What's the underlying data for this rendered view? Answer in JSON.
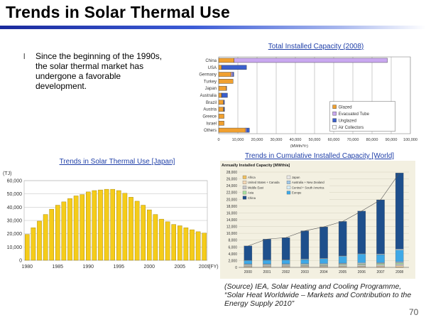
{
  "slide": {
    "title": "Trends in Solar Thermal Use",
    "bullet_glyph": "l",
    "bullet": "Since the beginning of the 1990s, the solar thermal market has undergone a favorable development.",
    "source": "(Source) IEA, Solar Heating and Cooling Programme, “Solar Heat Worldwide – Markets and Contribution to the Energy Supply 2010”",
    "page_number": "70"
  },
  "chart_data": [
    {
      "type": "bar",
      "orientation": "horizontal",
      "stacked": true,
      "title": "Total Installed Capacity (2008)",
      "xlabel": "(MWth/Yr)",
      "xlim": [
        0,
        100000
      ],
      "xticks": [
        "0",
        "10,000",
        "20,000",
        "30,000",
        "40,000",
        "50,000",
        "60,000",
        "70,000",
        "80,000",
        "90,000",
        "100,000"
      ],
      "categories": [
        "China",
        "USA",
        "Germany",
        "Turkey",
        "Japan",
        "Australia",
        "Brazil",
        "Austria",
        "Greece",
        "Israel",
        "Others"
      ],
      "series": [
        {
          "name": "Glazed",
          "color": "#f0a030",
          "values": [
            8000,
            1500,
            6500,
            7500,
            4000,
            1500,
            2500,
            2500,
            2800,
            2800,
            14000
          ]
        },
        {
          "name": "Evacuated Tube",
          "color": "#c9a8f0",
          "values": [
            80000,
            0,
            800,
            0,
            200,
            100,
            0,
            150,
            0,
            0,
            500
          ]
        },
        {
          "name": "Unglazed",
          "color": "#3a5fcd",
          "values": [
            0,
            13000,
            600,
            0,
            0,
            3000,
            500,
            400,
            0,
            0,
            1500
          ]
        },
        {
          "name": "Air Collectors",
          "color": "#ffffff",
          "values": [
            0,
            0,
            0,
            0,
            0,
            0,
            0,
            0,
            0,
            0,
            0
          ]
        }
      ],
      "legend_position": "bottom-right"
    },
    {
      "type": "bar",
      "title": "Trends in Solar Thermal Use [Japan]",
      "ylabel": "(TJ)",
      "xlabel": "(FY)",
      "ylim": [
        0,
        60000
      ],
      "yticks": [
        "0",
        "10,000",
        "20,000",
        "30,000",
        "40,000",
        "50,000",
        "60,000"
      ],
      "xticks": [
        "1980",
        "1985",
        "1990",
        "1995",
        "2000",
        "2005",
        "2009"
      ],
      "bar_color": "#f5cc1a",
      "categories": [
        "1980",
        "1981",
        "1982",
        "1983",
        "1984",
        "1985",
        "1986",
        "1987",
        "1988",
        "1989",
        "1990",
        "1991",
        "1992",
        "1993",
        "1994",
        "1995",
        "1996",
        "1997",
        "1998",
        "1999",
        "2000",
        "2001",
        "2002",
        "2003",
        "2004",
        "2005",
        "2006",
        "2007",
        "2008",
        "2009"
      ],
      "values": [
        19500,
        24500,
        29500,
        34500,
        38500,
        41500,
        44000,
        46500,
        48500,
        49500,
        51500,
        52500,
        53000,
        53500,
        53500,
        52500,
        50500,
        47500,
        44500,
        41500,
        38000,
        34500,
        31000,
        29000,
        27000,
        26000,
        24500,
        23000,
        21500,
        20500
      ]
    },
    {
      "type": "bar",
      "stacked": true,
      "title": "Trends in Cumulative Installed Capacity [World]",
      "ylabel": "Annually Installed Capacity [MWth/a]",
      "ylim": [
        0,
        28000
      ],
      "yticks": [
        "0",
        "2,000",
        "4,000",
        "6,000",
        "8,000",
        "10,000",
        "12,000",
        "14,000",
        "16,000",
        "18,000",
        "20,000",
        "22,000",
        "24,000",
        "26,000",
        "28,000"
      ],
      "categories": [
        "2000",
        "2001",
        "2002",
        "2003",
        "2004",
        "2005",
        "2006",
        "2007",
        "2008"
      ],
      "series": [
        {
          "name": "Africa",
          "color": "#f0c060",
          "values": [
            100,
            100,
            100,
            100,
            100,
            100,
            100,
            100,
            150
          ]
        },
        {
          "name": "United States + Canada",
          "color": "#f4d7b5",
          "values": [
            150,
            150,
            150,
            150,
            150,
            200,
            200,
            250,
            300
          ]
        },
        {
          "name": "Middle East",
          "color": "#c8c8c8",
          "values": [
            300,
            300,
            300,
            350,
            350,
            400,
            450,
            450,
            500
          ]
        },
        {
          "name": "Asia",
          "color": "#a8dfa0",
          "values": [
            100,
            100,
            150,
            150,
            200,
            200,
            250,
            300,
            350
          ]
        },
        {
          "name": "Japan",
          "color": "#e8e8e8",
          "values": [
            250,
            250,
            200,
            200,
            200,
            200,
            200,
            150,
            150
          ]
        },
        {
          "name": "Australia + New Zealand",
          "color": "#a0c8e8",
          "values": [
            100,
            100,
            150,
            150,
            150,
            150,
            200,
            200,
            250
          ]
        },
        {
          "name": "Europe",
          "color": "#3fa8e6",
          "values": [
            1000,
            1100,
            1100,
            1200,
            1400,
            2000,
            2500,
            2300,
            3400
          ]
        },
        {
          "name": "Central + South America",
          "color": "#d8eef8",
          "values": [
            100,
            100,
            100,
            150,
            150,
            150,
            150,
            200,
            250
          ]
        },
        {
          "name": "China",
          "color": "#1e4f8c",
          "values": [
            4200,
            6100,
            6500,
            8300,
            9200,
            10100,
            12500,
            15900,
            22400
          ]
        }
      ],
      "legend_position": "top-left"
    }
  ]
}
